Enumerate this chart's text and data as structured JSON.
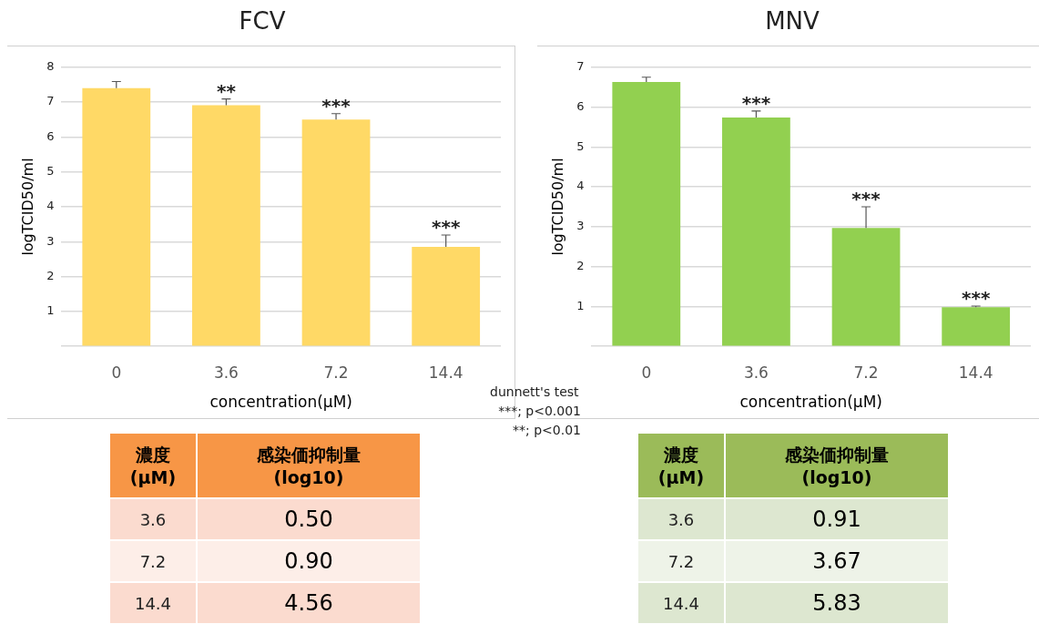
{
  "chart_data": [
    {
      "type": "bar",
      "title": "FCV",
      "xlabel": "concentration(μM)",
      "ylabel": "logTCID50/ml",
      "categories": [
        "0",
        "3.6",
        "7.2",
        "14.4"
      ],
      "values": [
        7.4,
        6.91,
        6.5,
        2.85
      ],
      "color": "#ffd966",
      "errors": [
        [
          7.4,
          7.59
        ],
        [
          6.91,
          7.09
        ],
        [
          6.5,
          6.67
        ],
        [
          2.85,
          3.19
        ]
      ],
      "ylim": [
        0,
        8
      ],
      "yticks": [
        {
          "value": 0,
          "label": null
        },
        1,
        2,
        3,
        4,
        5,
        6,
        7,
        8
      ],
      "grid": "y",
      "annotations": [
        {
          "text": "**",
          "x": "3.6",
          "y": 7.09
        },
        {
          "text": "***",
          "x": "7.2",
          "y": 6.67
        },
        {
          "text": "***",
          "x": "14.4",
          "y": 3.19
        },
        "dunnett's test",
        "***; p<0.001",
        "**; p<0.01"
      ]
    },
    {
      "type": "bar",
      "title": "MNV",
      "xlabel": "concentration(μM)",
      "ylabel": "logTCID50/ml",
      "categories": [
        "0",
        "3.6",
        "7.2",
        "14.4"
      ],
      "values": [
        6.63,
        5.74,
        2.97,
        0.98
      ],
      "color": "#92d050",
      "errors": [
        [
          6.63,
          6.75
        ],
        [
          5.74,
          5.9
        ],
        [
          2.97,
          3.5
        ],
        [
          0.98,
          1.01
        ]
      ],
      "ylim": [
        0,
        7
      ],
      "yticks": [
        {
          "value": 0,
          "label": null
        },
        1,
        2,
        3,
        4,
        5,
        6,
        7
      ],
      "grid": "y",
      "annotations": [
        {
          "text": "***",
          "x": "3.6",
          "y": 5.9
        },
        {
          "text": "***",
          "x": "7.2",
          "y": 3.5
        },
        {
          "text": "***",
          "x": "14.4",
          "y": 1.01
        }
      ]
    },
    {
      "type": "other",
      "xlabel": "濃度 (μM)",
      "ylabel": "感染価抑制量 (log10)",
      "categories": [
        "3.6",
        "7.2",
        "14.4"
      ],
      "values": [
        0.5,
        0.9,
        4.56
      ],
      "value_labels": [
        "0.50",
        "0.90",
        "4.56"
      ],
      "colors": [
        "#fbdbcf",
        "#fdeee8",
        "#fbdbcf"
      ],
      "color": "#f79646"
    },
    {
      "type": "other",
      "xlabel": "濃度 (μM)",
      "ylabel": "感染価抑制量 (log10)",
      "categories": [
        "3.6",
        "7.2",
        "14.4"
      ],
      "values": [
        0.91,
        3.67,
        5.83
      ],
      "value_labels": [
        "0.91",
        "3.67",
        "5.83"
      ],
      "colors": [
        "#dde7d0",
        "#eef3e8",
        "#dde7d0"
      ],
      "color": "#9bbb59"
    }
  ]
}
